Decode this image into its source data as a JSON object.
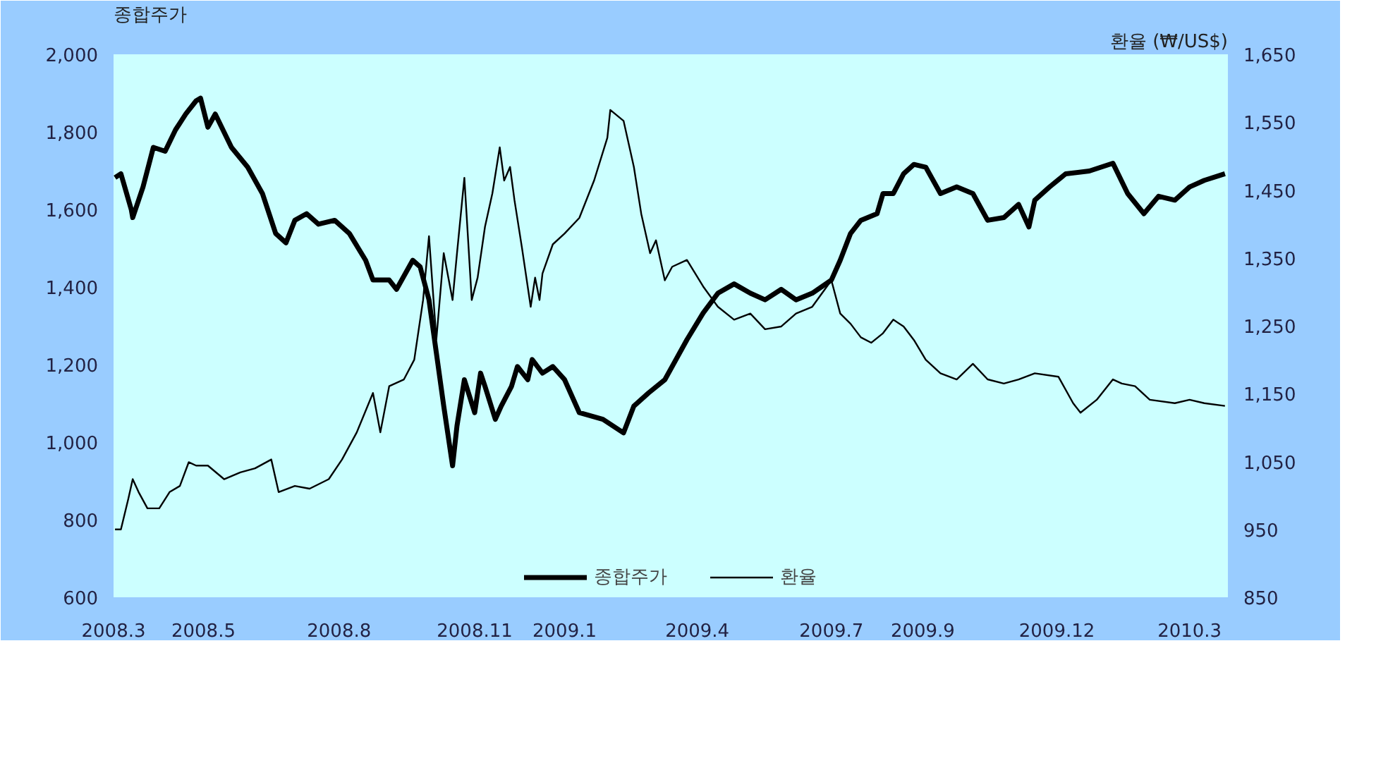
{
  "chart_data": {
    "type": "line",
    "ylabel": "종합주가",
    "y2label": "환율 (₩/US$)",
    "xlim": [
      "2008-03-01",
      "2010-03-27"
    ],
    "xticks": [
      {
        "value": "2008-03",
        "label": "2008.3"
      },
      {
        "value": "2008-05",
        "label": "2008.5"
      },
      {
        "value": "2008-08",
        "label": "2008.8"
      },
      {
        "value": "2008-11",
        "label": "2008.11"
      },
      {
        "value": "2009-01",
        "label": "2009.1"
      },
      {
        "value": "2009-04",
        "label": "2009.4"
      },
      {
        "value": "2009-07",
        "label": "2009.7"
      },
      {
        "value": "2009-09",
        "label": "2009.9"
      },
      {
        "value": "2009-12",
        "label": "2009.12"
      },
      {
        "value": "2010-03",
        "label": "2010.3"
      }
    ],
    "ylim": [
      600,
      2000
    ],
    "yticks": [
      {
        "value": 600,
        "label": "600"
      },
      {
        "value": 800,
        "label": "800"
      },
      {
        "value": 1000,
        "label": "1,000"
      },
      {
        "value": 1200,
        "label": "1,200"
      },
      {
        "value": 1400,
        "label": "1,400"
      },
      {
        "value": 1600,
        "label": "1,600"
      },
      {
        "value": 1800,
        "label": "1,800"
      },
      {
        "value": 2000,
        "label": "2,000"
      }
    ],
    "y2lim": [
      850,
      1650
    ],
    "y2ticks": [
      {
        "value": 850,
        "label": "850"
      },
      {
        "value": 950,
        "label": "950"
      },
      {
        "value": 1050,
        "label": "1,050"
      },
      {
        "value": 1150,
        "label": "1,150"
      },
      {
        "value": 1250,
        "label": "1,250"
      },
      {
        "value": 1350,
        "label": "1,350"
      },
      {
        "value": 1450,
        "label": "1,450"
      },
      {
        "value": 1550,
        "label": "1,550"
      },
      {
        "value": 1650,
        "label": "1,650"
      }
    ],
    "legend": "bottom",
    "series": [
      {
        "name": "종합주가",
        "color": "#000000",
        "x": [
          "2008-03-02",
          "2008-03-06",
          "2008-03-13",
          "2008-03-14",
          "2008-03-21",
          "2008-03-28",
          "2008-04-05",
          "2008-04-12",
          "2008-04-19",
          "2008-04-26",
          "2008-04-29",
          "2008-05-04",
          "2008-05-09",
          "2008-05-20",
          "2008-05-31",
          "2008-06-10",
          "2008-06-19",
          "2008-06-26",
          "2008-07-02",
          "2008-07-10",
          "2008-07-18",
          "2008-07-29",
          "2008-08-08",
          "2008-08-19",
          "2008-08-24",
          "2008-09-04",
          "2008-09-09",
          "2008-09-20",
          "2008-09-25",
          "2008-10-01",
          "2008-10-06",
          "2008-10-11",
          "2008-10-17",
          "2008-10-20",
          "2008-10-25",
          "2008-11-01",
          "2008-11-05",
          "2008-11-08",
          "2008-11-15",
          "2008-11-19",
          "2008-11-26",
          "2008-11-30",
          "2008-12-07",
          "2008-12-10",
          "2008-12-17",
          "2008-12-24",
          "2009-01-01",
          "2009-01-11",
          "2009-01-27",
          "2009-02-10",
          "2009-02-17",
          "2009-02-27",
          "2009-03-10",
          "2009-03-25",
          "2009-04-05",
          "2009-04-15",
          "2009-04-26",
          "2009-05-07",
          "2009-05-17",
          "2009-05-28",
          "2009-06-07",
          "2009-06-18",
          "2009-07-01",
          "2009-07-07",
          "2009-07-14",
          "2009-07-21",
          "2009-08-01",
          "2009-08-05",
          "2009-08-12",
          "2009-08-19",
          "2009-08-26",
          "2009-09-03",
          "2009-09-13",
          "2009-09-24",
          "2009-10-05",
          "2009-10-15",
          "2009-10-26",
          "2009-11-05",
          "2009-11-12",
          "2009-11-16",
          "2009-11-26",
          "2009-12-07",
          "2009-12-23",
          "2010-01-08",
          "2010-01-18",
          "2010-01-29",
          "2010-02-08",
          "2010-02-19",
          "2010-03-01",
          "2010-03-11",
          "2010-03-25"
        ],
        "values": [
          1682,
          1692,
          1600,
          1579,
          1658,
          1760,
          1750,
          1805,
          1846,
          1880,
          1887,
          1812,
          1846,
          1760,
          1709,
          1641,
          1538,
          1514,
          1572,
          1589,
          1562,
          1572,
          1538,
          1469,
          1418,
          1418,
          1394,
          1469,
          1452,
          1367,
          1230,
          1093,
          939,
          1042,
          1161,
          1076,
          1178,
          1144,
          1059,
          1093,
          1144,
          1195,
          1161,
          1213,
          1178,
          1195,
          1161,
          1076,
          1059,
          1024,
          1093,
          1127,
          1161,
          1264,
          1333,
          1384,
          1408,
          1384,
          1367,
          1394,
          1367,
          1384,
          1418,
          1469,
          1538,
          1572,
          1589,
          1641,
          1641,
          1692,
          1716,
          1709,
          1641,
          1658,
          1641,
          1572,
          1579,
          1613,
          1555,
          1624,
          1658,
          1692,
          1699,
          1719,
          1641,
          1589,
          1634,
          1624,
          1658,
          1675,
          1692
        ]
      },
      {
        "name": "환율",
        "color": "#000000",
        "axis": "y2",
        "x": [
          "2008-03-02",
          "2008-03-06",
          "2008-03-11",
          "2008-03-14",
          "2008-03-18",
          "2008-03-24",
          "2008-04-01",
          "2008-04-08",
          "2008-04-15",
          "2008-04-21",
          "2008-04-26",
          "2008-05-04",
          "2008-05-15",
          "2008-05-26",
          "2008-06-05",
          "2008-06-16",
          "2008-06-21",
          "2008-07-02",
          "2008-07-12",
          "2008-07-25",
          "2008-08-03",
          "2008-08-13",
          "2008-08-24",
          "2008-08-29",
          "2008-09-04",
          "2008-09-14",
          "2008-09-21",
          "2008-09-27",
          "2008-10-01",
          "2008-10-06",
          "2008-10-11",
          "2008-10-17",
          "2008-10-20",
          "2008-10-25",
          "2008-10-30",
          "2008-11-03",
          "2008-11-08",
          "2008-11-13",
          "2008-11-18",
          "2008-11-21",
          "2008-11-25",
          "2008-11-28",
          "2008-12-03",
          "2008-12-09",
          "2008-12-12",
          "2008-12-15",
          "2008-12-17",
          "2008-12-24",
          "2009-01-01",
          "2009-01-11",
          "2009-01-21",
          "2009-01-30",
          "2009-02-01",
          "2009-02-10",
          "2009-02-17",
          "2009-02-22",
          "2009-02-28",
          "2009-03-04",
          "2009-03-10",
          "2009-03-15",
          "2009-03-25",
          "2009-04-05",
          "2009-04-15",
          "2009-04-26",
          "2009-05-07",
          "2009-05-17",
          "2009-05-28",
          "2009-06-07",
          "2009-06-18",
          "2009-07-01",
          "2009-07-07",
          "2009-07-14",
          "2009-07-21",
          "2009-07-28",
          "2009-08-05",
          "2009-08-12",
          "2009-08-19",
          "2009-08-26",
          "2009-09-03",
          "2009-09-13",
          "2009-09-24",
          "2009-10-05",
          "2009-10-15",
          "2009-10-26",
          "2009-11-05",
          "2009-11-16",
          "2009-12-02",
          "2009-12-12",
          "2009-12-17",
          "2009-12-28",
          "2010-01-08",
          "2010-01-14",
          "2010-01-23",
          "2010-02-02",
          "2010-02-19",
          "2010-03-01",
          "2010-03-11",
          "2010-03-25"
        ],
        "values": [
          950,
          950,
          995,
          1024,
          1005,
          981,
          981,
          1005,
          1014,
          1049,
          1044,
          1044,
          1024,
          1034,
          1040,
          1053,
          1005,
          1014,
          1010,
          1024,
          1053,
          1093,
          1151,
          1093,
          1161,
          1171,
          1200,
          1288,
          1382,
          1230,
          1357,
          1288,
          1357,
          1468,
          1288,
          1321,
          1396,
          1445,
          1513,
          1464,
          1484,
          1435,
          1366,
          1278,
          1321,
          1288,
          1327,
          1370,
          1386,
          1409,
          1464,
          1527,
          1568,
          1552,
          1484,
          1415,
          1357,
          1376,
          1317,
          1337,
          1347,
          1308,
          1278,
          1259,
          1268,
          1245,
          1249,
          1268,
          1278,
          1317,
          1268,
          1253,
          1233,
          1225,
          1239,
          1259,
          1249,
          1229,
          1200,
          1180,
          1171,
          1194,
          1171,
          1165,
          1171,
          1180,
          1175,
          1136,
          1122,
          1141,
          1171,
          1165,
          1161,
          1141,
          1136,
          1141,
          1136,
          1132
        ]
      }
    ]
  }
}
